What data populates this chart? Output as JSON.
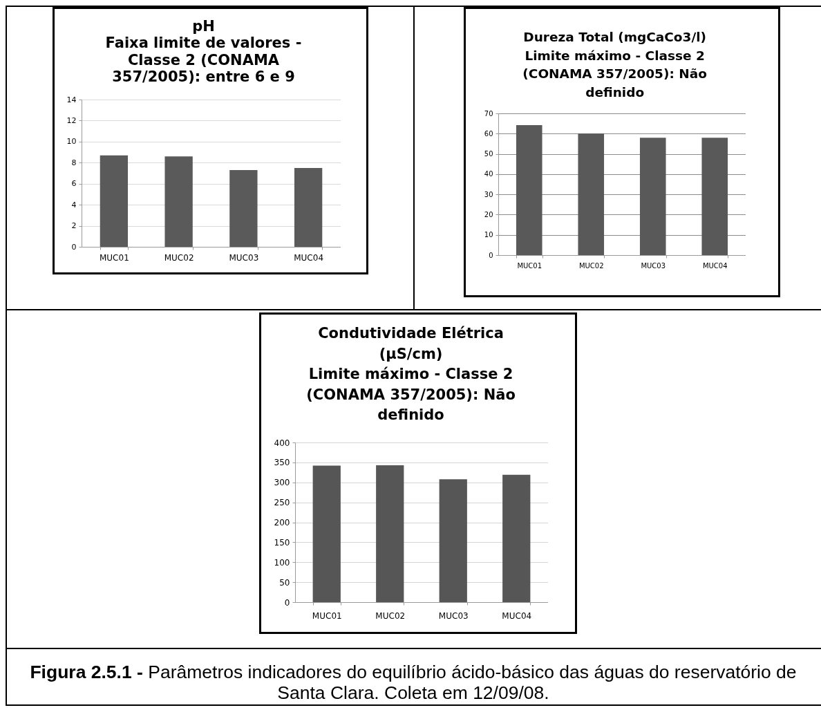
{
  "chart_data": [
    {
      "type": "bar",
      "title": "pH\nFaixa limite de valores -\nClasse 2 (CONAMA\n357/2005): entre 6 e 9",
      "categories": [
        "MUC01",
        "MUC02",
        "MUC03",
        "MUC04"
      ],
      "values": [
        8.7,
        8.6,
        7.3,
        7.5
      ],
      "color": "#5a5a5a",
      "ylim": [
        0,
        14
      ],
      "yticks": [
        0,
        2,
        4,
        6,
        8,
        10,
        12,
        14
      ],
      "grid": "y"
    },
    {
      "type": "bar",
      "title": "Dureza Total (mgCaCo3/l)\nLimite máximo - Classe 2\n(CONAMA 357/2005): Não\ndefinido",
      "categories": [
        "MUC01",
        "MUC02",
        "MUC03",
        "MUC04"
      ],
      "values": [
        64.2,
        60,
        58,
        58
      ],
      "color": "#595959",
      "ylim": [
        0,
        70
      ],
      "yticks": [
        0,
        10,
        20,
        30,
        40,
        50,
        60,
        70
      ],
      "grid": "y"
    },
    {
      "type": "bar",
      "title": "Condutividade Elétrica\n(µS/cm)\nLimite máximo - Classe 2\n(CONAMA 357/2005): Não\ndefinido",
      "categories": [
        "MUC01",
        "MUC02",
        "MUC03",
        "MUC04"
      ],
      "values": [
        342,
        343,
        308,
        319
      ],
      "color": "#565656",
      "ylim": [
        0,
        400
      ],
      "yticks": [
        0,
        50,
        100,
        150,
        200,
        250,
        300,
        350,
        400
      ],
      "grid": "y",
      "annotations": [
        "Figura 2.5.1 -",
        "Parâmetros indicadores do equilíbrio ácido-básico das águas do reservatório de Santa Clara. Coleta em 12/09/08."
      ]
    }
  ]
}
